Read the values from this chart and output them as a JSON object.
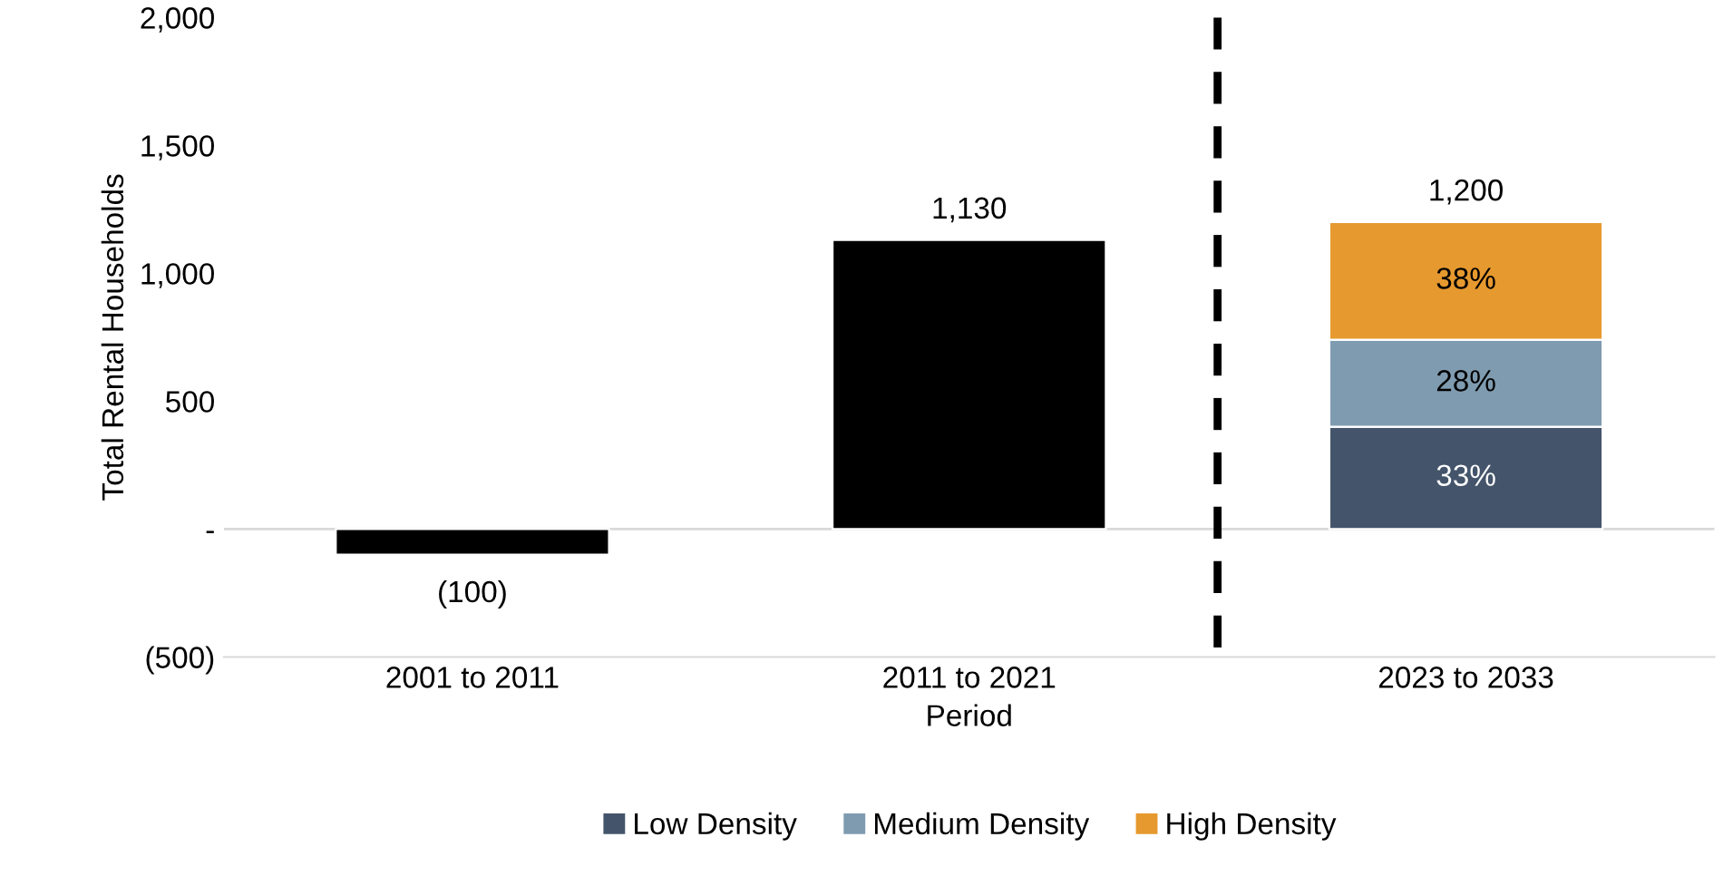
{
  "chart_data": {
    "type": "bar",
    "stacked": true,
    "xlabel": "Period",
    "ylabel": "Total Rental Households",
    "categories": [
      "2001 to 2011",
      "2011 to 2021",
      "2023 to 2033"
    ],
    "series": [
      {
        "color": "#000000",
        "values": [
          -100,
          1130,
          null
        ],
        "value_labels": [
          "(100)",
          "1,130",
          null
        ]
      },
      {
        "name": "Low Density",
        "color": "#44546a",
        "values": [
          null,
          null,
          400
        ]
      },
      {
        "name": "Medium Density",
        "color": "#7f9bb0",
        "values": [
          null,
          null,
          340
        ]
      },
      {
        "name": "High Density",
        "color": "#e6992e",
        "values": [
          null,
          null,
          460
        ]
      }
    ],
    "annotations": [
      "33%",
      "28%",
      "38%"
    ],
    "totals": [
      null,
      null,
      "1,200"
    ],
    "ylim": [
      -500,
      2000
    ],
    "yticks": [
      {
        "value": -500,
        "label": "(500)"
      },
      {
        "value": 0,
        "label": "-"
      },
      {
        "value": 500,
        "label": "500"
      },
      {
        "value": 1000,
        "label": "1,000"
      },
      {
        "value": 1500,
        "label": "1,500"
      },
      {
        "value": 2000,
        "label": "2,000"
      }
    ],
    "ref_lines": [
      {
        "axis": "y",
        "value": 0,
        "color": "#d9d9d9",
        "line_style": "solid"
      }
    ],
    "legend": "bottom"
  }
}
